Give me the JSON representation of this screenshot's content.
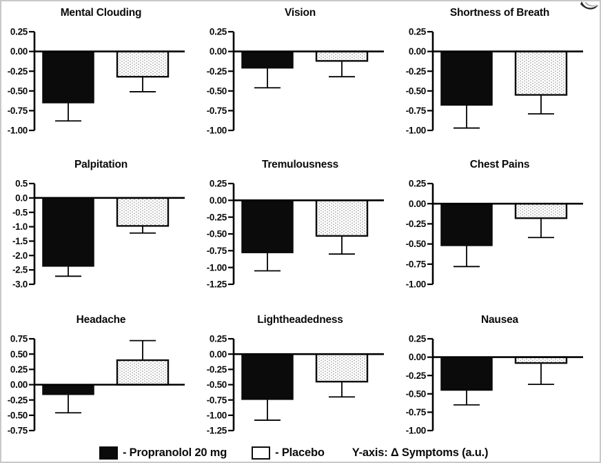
{
  "page": {
    "legend": {
      "propranolol_label": "- Propranolol 20 mg",
      "placebo_label": "- Placebo",
      "yaxis_note": "Y-axis: Δ Symptoms (a.u.)"
    },
    "colors": {
      "bar_black": "#0b0b0b",
      "stipple_dot": "#a8a8a8",
      "axis": "#000000",
      "frame_border": "#c8c8c8"
    }
  },
  "chart_data": [
    {
      "type": "bar",
      "title": "Mental Clouding",
      "categories": [
        "Propranolol 20 mg",
        "Placebo"
      ],
      "values": [
        -0.65,
        -0.32
      ],
      "errors": [
        0.23,
        0.19
      ],
      "yticks": [
        "0.25",
        "0.00",
        "-0.25",
        "-0.50",
        "-0.75",
        "-1.00"
      ],
      "ylim": [
        -1.0,
        0.25
      ],
      "ylabel": "Δ Symptoms (a.u.)"
    },
    {
      "type": "bar",
      "title": "Vision",
      "categories": [
        "Propranolol 20 mg",
        "Placebo"
      ],
      "values": [
        -0.21,
        -0.12
      ],
      "errors": [
        0.25,
        0.2
      ],
      "yticks": [
        "0.25",
        "0.00",
        "-0.25",
        "-0.50",
        "-0.75",
        "-1.00"
      ],
      "ylim": [
        -1.0,
        0.25
      ],
      "ylabel": "Δ Symptoms (a.u.)"
    },
    {
      "type": "bar",
      "title": "Shortness of Breath",
      "categories": [
        "Propranolol 20 mg",
        "Placebo"
      ],
      "values": [
        -0.68,
        -0.55
      ],
      "errors": [
        0.29,
        0.24
      ],
      "yticks": [
        "0.25",
        "0.00",
        "-0.25",
        "-0.50",
        "-0.75",
        "-1.00"
      ],
      "ylim": [
        -1.0,
        0.25
      ],
      "ylabel": "Δ Symptoms (a.u.)"
    },
    {
      "type": "bar",
      "title": "Palpitation",
      "categories": [
        "Propranolol 20 mg",
        "Placebo"
      ],
      "values": [
        -2.37,
        -0.97
      ],
      "errors": [
        0.35,
        0.25
      ],
      "yticks": [
        "0.5",
        "0.0",
        "-0.5",
        "-1.0",
        "-1.5",
        "-2.0",
        "-2.5",
        "-3.0"
      ],
      "ylim": [
        -3.0,
        0.5
      ],
      "ylabel": "Δ Symptoms (a.u.)"
    },
    {
      "type": "bar",
      "title": "Tremulousness",
      "categories": [
        "Propranolol 20 mg",
        "Placebo"
      ],
      "values": [
        -0.78,
        -0.53
      ],
      "errors": [
        0.27,
        0.27
      ],
      "yticks": [
        "0.25",
        "0.00",
        "-0.25",
        "-0.50",
        "-0.75",
        "-1.00",
        "-1.25"
      ],
      "ylim": [
        -1.25,
        0.25
      ],
      "ylabel": "Δ Symptoms (a.u.)"
    },
    {
      "type": "bar",
      "title": "Chest Pains",
      "categories": [
        "Propranolol 20 mg",
        "Placebo"
      ],
      "values": [
        -0.52,
        -0.18
      ],
      "errors": [
        0.26,
        0.24
      ],
      "yticks": [
        "0.25",
        "0.00",
        "-0.25",
        "-0.50",
        "-0.75",
        "-1.00"
      ],
      "ylim": [
        -1.0,
        0.25
      ],
      "ylabel": "Δ Symptoms (a.u.)"
    },
    {
      "type": "bar",
      "title": "Headache",
      "categories": [
        "Propranolol 20 mg",
        "Placebo"
      ],
      "values": [
        -0.16,
        0.4
      ],
      "errors": [
        0.3,
        0.32
      ],
      "yticks": [
        "0.75",
        "0.50",
        "0.25",
        "0.00",
        "-0.25",
        "-0.50",
        "-0.75"
      ],
      "ylim": [
        -0.75,
        0.75
      ],
      "ylabel": "Δ Symptoms (a.u.)"
    },
    {
      "type": "bar",
      "title": "Lightheadedness",
      "categories": [
        "Propranolol 20 mg",
        "Placebo"
      ],
      "values": [
        -0.74,
        -0.45
      ],
      "errors": [
        0.34,
        0.25
      ],
      "yticks": [
        "0.25",
        "0.00",
        "-0.25",
        "-0.50",
        "-0.75",
        "-1.00",
        "-1.25"
      ],
      "ylim": [
        -1.25,
        0.25
      ],
      "ylabel": "Δ Symptoms (a.u.)"
    },
    {
      "type": "bar",
      "title": "Nausea",
      "categories": [
        "Propranolol 20 mg",
        "Placebo"
      ],
      "values": [
        -0.45,
        -0.08
      ],
      "errors": [
        0.2,
        0.29
      ],
      "yticks": [
        "0.25",
        "0.00",
        "-0.25",
        "-0.50",
        "-0.75",
        "-1.00"
      ],
      "ylim": [
        -1.0,
        0.25
      ],
      "ylabel": "Δ Symptoms (a.u.)"
    }
  ]
}
